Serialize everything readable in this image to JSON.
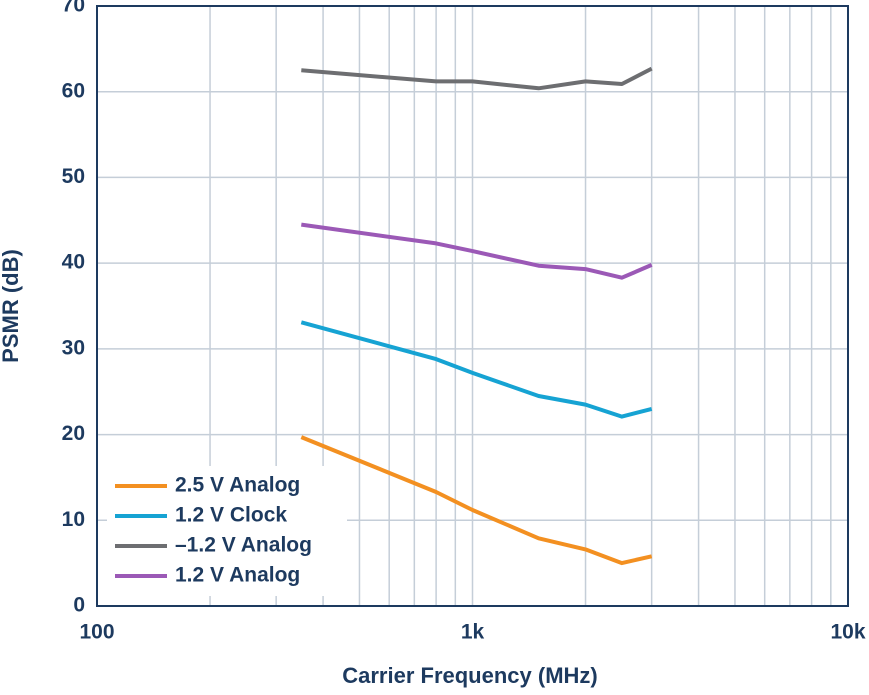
{
  "chart_data": {
    "type": "line",
    "x_label": "Carrier Frequency (MHz)",
    "y_label": "PSMR (dB)",
    "x": [
      350,
      800,
      1000,
      1500,
      2000,
      2500,
      3000
    ],
    "series": [
      {
        "name": "2.5 V Analog",
        "color": "#f39021",
        "values": [
          19.7,
          13.3,
          11.2,
          7.9,
          6.6,
          5.0,
          5.8
        ]
      },
      {
        "name": "1.2 V Clock",
        "color": "#16a3d3",
        "values": [
          33.1,
          28.8,
          27.2,
          24.5,
          23.5,
          22.1,
          23.0
        ]
      },
      {
        "name": "–1.2 V Analog",
        "color": "#6d6e71",
        "values": [
          62.5,
          61.2,
          61.2,
          60.4,
          61.2,
          60.9,
          62.7
        ]
      },
      {
        "name": "1.2 V Analog",
        "color": "#9b59b6",
        "values": [
          44.5,
          42.3,
          41.4,
          39.7,
          39.3,
          38.3,
          39.8
        ]
      }
    ],
    "xscale": "log",
    "xlim": [
      100,
      10000
    ],
    "xticks": [
      100,
      {
        "value": 1000,
        "label": "1k"
      },
      {
        "value": 10000,
        "label": "10k"
      }
    ],
    "xminorticks": [
      200,
      300,
      400,
      500,
      600,
      700,
      800,
      900,
      2000,
      3000,
      4000,
      5000,
      6000,
      7000,
      8000,
      9000
    ],
    "ylim": [
      0,
      70
    ],
    "yticks": [
      0,
      10,
      20,
      30,
      40,
      50,
      60,
      70
    ],
    "grid": true,
    "legend": "lower-left"
  }
}
